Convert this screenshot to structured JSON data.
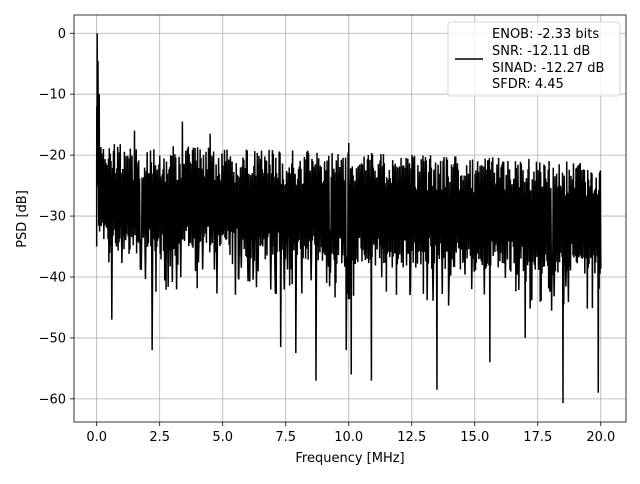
{
  "chart_data": {
    "type": "line",
    "title": "",
    "xlabel": "Frequency [MHz]",
    "ylabel": "PSD [dB]",
    "xlim": [
      -0.9,
      21.0
    ],
    "ylim": [
      -63.8,
      3.0
    ],
    "xticks": [
      0.0,
      2.5,
      5.0,
      7.5,
      10.0,
      12.5,
      15.0,
      17.5,
      20.0
    ],
    "xtick_labels": [
      "0.0",
      "2.5",
      "5.0",
      "7.5",
      "10.0",
      "12.5",
      "15.0",
      "17.5",
      "20.0"
    ],
    "yticks": [
      0,
      -10,
      -20,
      -30,
      -40,
      -50,
      -60
    ],
    "ytick_labels": [
      "0",
      "−10",
      "−20",
      "−30",
      "−40",
      "−50",
      "−60"
    ],
    "grid": true,
    "legend_position": "top-right",
    "line_color": "#000000",
    "series": [
      {
        "name": "ENOB: -2.33 bits\nSNR: -12.11 dB\nSINAD: -12.27 dB\nSFDR: 4.45",
        "description": "dense noisy spectrum",
        "x_range": [
          0.0,
          20.0
        ],
        "num_points": 1200,
        "peaks": [
          [
            0.02,
            0.0
          ],
          [
            0.05,
            -4.5
          ],
          [
            0.1,
            -10.0
          ],
          [
            3.4,
            -14.5
          ],
          [
            1.5,
            -16.0
          ],
          [
            4.5,
            -16.5
          ],
          [
            10.0,
            -18.0
          ]
        ],
        "dips": [
          [
            0.6,
            -47.0
          ],
          [
            2.2,
            -52.0
          ],
          [
            7.3,
            -51.5
          ],
          [
            7.9,
            -52.5
          ],
          [
            8.7,
            -57.0
          ],
          [
            9.9,
            -52.0
          ],
          [
            10.1,
            -56.0
          ],
          [
            10.9,
            -57.0
          ],
          [
            13.5,
            -58.5
          ],
          [
            15.6,
            -54.0
          ],
          [
            17.0,
            -50.0
          ],
          [
            18.5,
            -60.7
          ],
          [
            19.9,
            -59.0
          ]
        ],
        "upper_envelope_start": -18.0,
        "upper_envelope_end": -21.0,
        "lower_envelope_start": -36.0,
        "lower_envelope_end": -40.0
      }
    ],
    "legend_lines": [
      "ENOB: -2.33 bits",
      "SNR: -12.11 dB",
      "SINAD: -12.27 dB",
      "SFDR: 4.45"
    ]
  }
}
